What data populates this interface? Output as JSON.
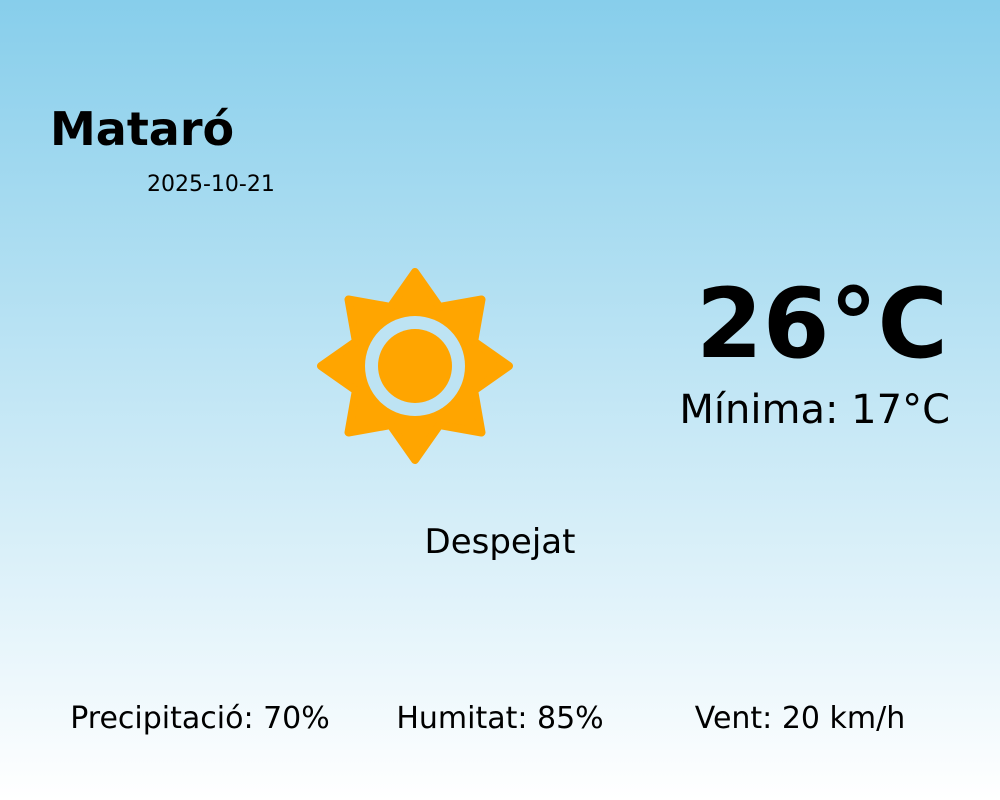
{
  "city": "Mataró",
  "date": "2025-10-21",
  "temperature": "26°C",
  "minimum": "Mínima: 17°C",
  "condition": "Despejat",
  "condition_icon": "sun-icon",
  "stats": {
    "precipitation": "Precipitació: 70%",
    "humidity": "Humitat: 85%",
    "wind": "Vent: 20 km/h"
  },
  "colors": {
    "sun": "#FFA500",
    "sky_top": "#87CEEB",
    "sky_bottom": "#FFFFFF"
  }
}
